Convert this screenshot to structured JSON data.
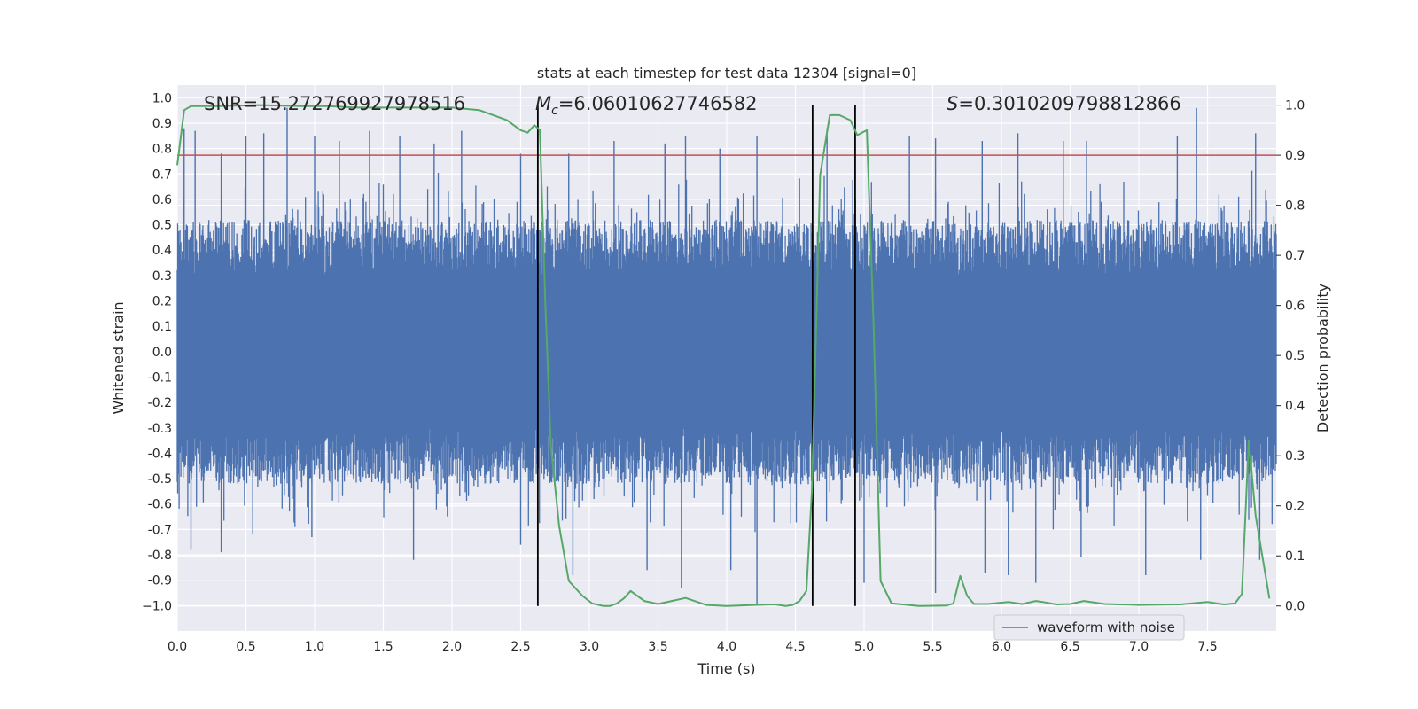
{
  "chart_data": {
    "type": "line",
    "title": "stats at each timestep for test data 12304 [signal=0]",
    "xlabel": "Time (s)",
    "ylabel": "Whitened strain",
    "y2label": "Detection probability",
    "xlim": [
      0.0,
      8.0
    ],
    "ylim": [
      -1.1,
      1.05
    ],
    "y2lim": [
      -0.05,
      1.04
    ],
    "x_ticks": [
      "0.0",
      "0.5",
      "1.0",
      "1.5",
      "2.0",
      "2.5",
      "3.0",
      "3.5",
      "4.0",
      "4.5",
      "5.0",
      "5.5",
      "6.0",
      "6.5",
      "7.0",
      "7.5"
    ],
    "y_ticks": [
      "1.0",
      "0.9",
      "0.8",
      "0.7",
      "0.6",
      "0.5",
      "0.4",
      "0.3",
      "0.2",
      "0.1",
      "0.0",
      "-0.1",
      "-0.2",
      "-0.3",
      "-0.4",
      "-0.5",
      "-0.6",
      "-0.7",
      "-0.8",
      "-0.9",
      "−1.0"
    ],
    "y2_ticks": [
      "1.0",
      "0.9",
      "0.8",
      "0.7",
      "0.6",
      "0.5",
      "0.4",
      "0.3",
      "0.2",
      "0.1",
      "0.0"
    ],
    "annotations": {
      "snr": "SNR=15.272769927978516",
      "mc_symbol": "M",
      "mc_sub": "c",
      "mc_value": "=6.06010627746582",
      "s_symbol": "S",
      "s_value": "=0.3010209798812866"
    },
    "threshold": {
      "value": 0.9,
      "axis": "y2",
      "color": "#c44e52"
    },
    "vertical_lines": [
      2.625,
      4.625,
      4.935
    ],
    "series": [
      {
        "name": "waveform with noise",
        "axis": "y",
        "color": "#4c72b0",
        "note": "whitened strain noise, spikes approx +/-0.9",
        "spikes_up": [
          [
            0.05,
            0.88
          ],
          [
            0.13,
            0.87
          ],
          [
            0.32,
            0.78
          ],
          [
            0.5,
            0.85
          ],
          [
            0.63,
            0.86
          ],
          [
            0.8,
            0.96
          ],
          [
            1.0,
            0.85
          ],
          [
            1.18,
            0.83
          ],
          [
            1.4,
            0.87
          ],
          [
            1.62,
            0.85
          ],
          [
            1.87,
            0.82
          ],
          [
            2.07,
            0.87
          ],
          [
            2.5,
            0.78
          ],
          [
            2.85,
            0.78
          ],
          [
            3.18,
            0.83
          ],
          [
            3.55,
            0.82
          ],
          [
            3.7,
            0.85
          ],
          [
            3.95,
            0.8
          ],
          [
            4.22,
            0.85
          ],
          [
            4.73,
            0.88
          ],
          [
            5.33,
            0.85
          ],
          [
            5.52,
            0.84
          ],
          [
            5.86,
            0.83
          ],
          [
            6.12,
            0.86
          ],
          [
            6.45,
            0.83
          ],
          [
            6.62,
            0.83
          ],
          [
            7.28,
            0.85
          ],
          [
            7.42,
            0.96
          ],
          [
            7.85,
            0.86
          ]
        ],
        "spikes_down": [
          [
            0.1,
            -0.78
          ],
          [
            0.32,
            -0.79
          ],
          [
            0.55,
            -0.72
          ],
          [
            0.98,
            -0.73
          ],
          [
            1.72,
            -0.82
          ],
          [
            2.5,
            -0.76
          ],
          [
            2.88,
            -0.88
          ],
          [
            3.42,
            -0.86
          ],
          [
            3.67,
            -0.93
          ],
          [
            4.03,
            -0.86
          ],
          [
            4.22,
            -1.0
          ],
          [
            5.0,
            -0.91
          ],
          [
            5.52,
            -0.95
          ],
          [
            5.88,
            -0.87
          ],
          [
            6.05,
            -0.88
          ],
          [
            6.25,
            -0.91
          ],
          [
            6.58,
            -0.81
          ],
          [
            7.05,
            -0.88
          ],
          [
            7.45,
            -0.82
          ],
          [
            7.88,
            -0.82
          ]
        ]
      },
      {
        "name": "detection probability",
        "axis": "y2",
        "color": "#55a868",
        "x": [
          0.0,
          0.05,
          0.1,
          0.3,
          0.6,
          0.9,
          1.1,
          1.3,
          1.5,
          1.7,
          2.0,
          2.2,
          2.3,
          2.4,
          2.5,
          2.55,
          2.6,
          2.64,
          2.68,
          2.72,
          2.78,
          2.85,
          2.95,
          3.02,
          3.1,
          3.15,
          3.2,
          3.25,
          3.3,
          3.4,
          3.5,
          3.6,
          3.7,
          3.85,
          4.0,
          4.2,
          4.35,
          4.43,
          4.48,
          4.53,
          4.58,
          4.62,
          4.68,
          4.75,
          4.82,
          4.9,
          4.95,
          5.02,
          5.07,
          5.12,
          5.2,
          5.4,
          5.6,
          5.65,
          5.7,
          5.75,
          5.8,
          5.9,
          6.05,
          6.15,
          6.25,
          6.3,
          6.4,
          6.5,
          6.6,
          6.75,
          7.0,
          7.3,
          7.5,
          7.62,
          7.7,
          7.75,
          7.8,
          7.85,
          7.95
        ],
        "y": [
          0.88,
          0.99,
          0.998,
          0.998,
          1.0,
          0.998,
          0.998,
          0.995,
          0.995,
          0.995,
          0.995,
          0.99,
          0.98,
          0.97,
          0.95,
          0.945,
          0.96,
          0.95,
          0.6,
          0.32,
          0.16,
          0.05,
          0.02,
          0.005,
          0.0,
          0.0,
          0.005,
          0.015,
          0.03,
          0.01,
          0.004,
          0.01,
          0.016,
          0.002,
          0.0,
          0.002,
          0.003,
          0.0,
          0.002,
          0.01,
          0.03,
          0.23,
          0.86,
          0.98,
          0.98,
          0.97,
          0.94,
          0.95,
          0.55,
          0.05,
          0.005,
          0.0,
          0.001,
          0.005,
          0.06,
          0.02,
          0.004,
          0.004,
          0.008,
          0.004,
          0.01,
          0.008,
          0.003,
          0.004,
          0.01,
          0.004,
          0.002,
          0.003,
          0.008,
          0.003,
          0.005,
          0.024,
          0.33,
          0.18,
          0.015
        ]
      }
    ]
  },
  "legend": {
    "label": "waveform with noise",
    "color": "#4c72b0"
  }
}
